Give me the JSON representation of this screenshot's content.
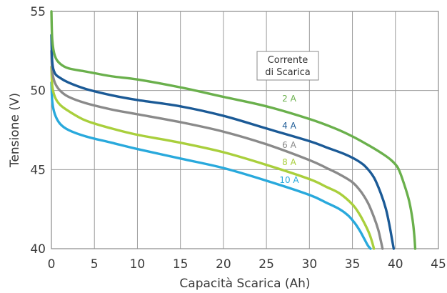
{
  "chart_data": {
    "type": "line",
    "title": "",
    "xlabel": "Capacità Scarica (Ah)",
    "ylabel": "Tensione (V)",
    "xlim": [
      0,
      45
    ],
    "ylim": [
      40,
      55
    ],
    "xticks": [
      0,
      5,
      10,
      15,
      20,
      25,
      30,
      35,
      40,
      45
    ],
    "yticks": [
      40,
      45,
      50,
      55
    ],
    "grid": true,
    "legend": {
      "title_lines": [
        "Corrente",
        "di Scarica"
      ],
      "placement": "top-right"
    },
    "series": [
      {
        "name": "2 A",
        "color": "#6ab04c",
        "x": [
          0,
          0.1,
          0.4,
          1,
          2,
          4,
          7,
          10,
          15,
          20,
          25,
          30,
          33,
          35,
          37,
          38.5,
          39.5,
          40.3,
          41,
          41.6,
          42,
          42.2,
          42.3
        ],
        "y": [
          55.0,
          53.2,
          52.2,
          51.7,
          51.4,
          51.2,
          50.9,
          50.7,
          50.2,
          49.6,
          49.0,
          48.2,
          47.6,
          47.1,
          46.5,
          46.0,
          45.6,
          45.1,
          44.1,
          43.0,
          41.8,
          40.8,
          40.0
        ]
      },
      {
        "name": "4 A",
        "color": "#1b5a96",
        "x": [
          0,
          0.1,
          0.4,
          1,
          2,
          4,
          7,
          10,
          15,
          20,
          25,
          30,
          32,
          34,
          35.5,
          36.5,
          37.5,
          38.3,
          38.9,
          39.3,
          39.6,
          39.8
        ],
        "y": [
          53.5,
          51.8,
          51.1,
          50.8,
          50.5,
          50.1,
          49.7,
          49.4,
          49.0,
          48.4,
          47.6,
          46.8,
          46.4,
          46.0,
          45.6,
          45.2,
          44.5,
          43.5,
          42.5,
          41.5,
          40.6,
          40.0
        ]
      },
      {
        "name": "6 A",
        "color": "#8a8a8a",
        "x": [
          0,
          0.1,
          0.4,
          1,
          2,
          4,
          7,
          10,
          15,
          20,
          25,
          30,
          32,
          33.5,
          35,
          36,
          36.8,
          37.5,
          38,
          38.3,
          38.5
        ],
        "y": [
          52.5,
          51.2,
          50.5,
          50.0,
          49.6,
          49.2,
          48.8,
          48.5,
          48.0,
          47.4,
          46.6,
          45.6,
          45.1,
          44.7,
          44.2,
          43.6,
          42.9,
          42.0,
          41.2,
          40.5,
          40.0
        ]
      },
      {
        "name": "8 A",
        "color": "#a9cf3c",
        "x": [
          0,
          0.1,
          0.4,
          1,
          2,
          4,
          7,
          10,
          15,
          20,
          25,
          30,
          32,
          33.5,
          35,
          35.8,
          36.5,
          37,
          37.3,
          37.5
        ],
        "y": [
          51.5,
          50.3,
          49.6,
          49.1,
          48.7,
          48.1,
          47.6,
          47.2,
          46.7,
          46.1,
          45.3,
          44.4,
          43.9,
          43.5,
          42.8,
          42.2,
          41.5,
          40.9,
          40.4,
          40.0
        ]
      },
      {
        "name": "10 A",
        "color": "#29a9dc",
        "x": [
          0,
          0.1,
          0.4,
          1,
          2,
          4,
          7,
          10,
          15,
          20,
          25,
          30,
          32,
          33.5,
          34.5,
          35.3,
          35.9,
          36.4,
          36.8,
          37.1
        ],
        "y": [
          50.5,
          49.3,
          48.5,
          47.9,
          47.5,
          47.1,
          46.7,
          46.3,
          45.7,
          45.1,
          44.3,
          43.4,
          42.9,
          42.5,
          42.1,
          41.6,
          41.1,
          40.6,
          40.2,
          40.0
        ]
      }
    ]
  }
}
